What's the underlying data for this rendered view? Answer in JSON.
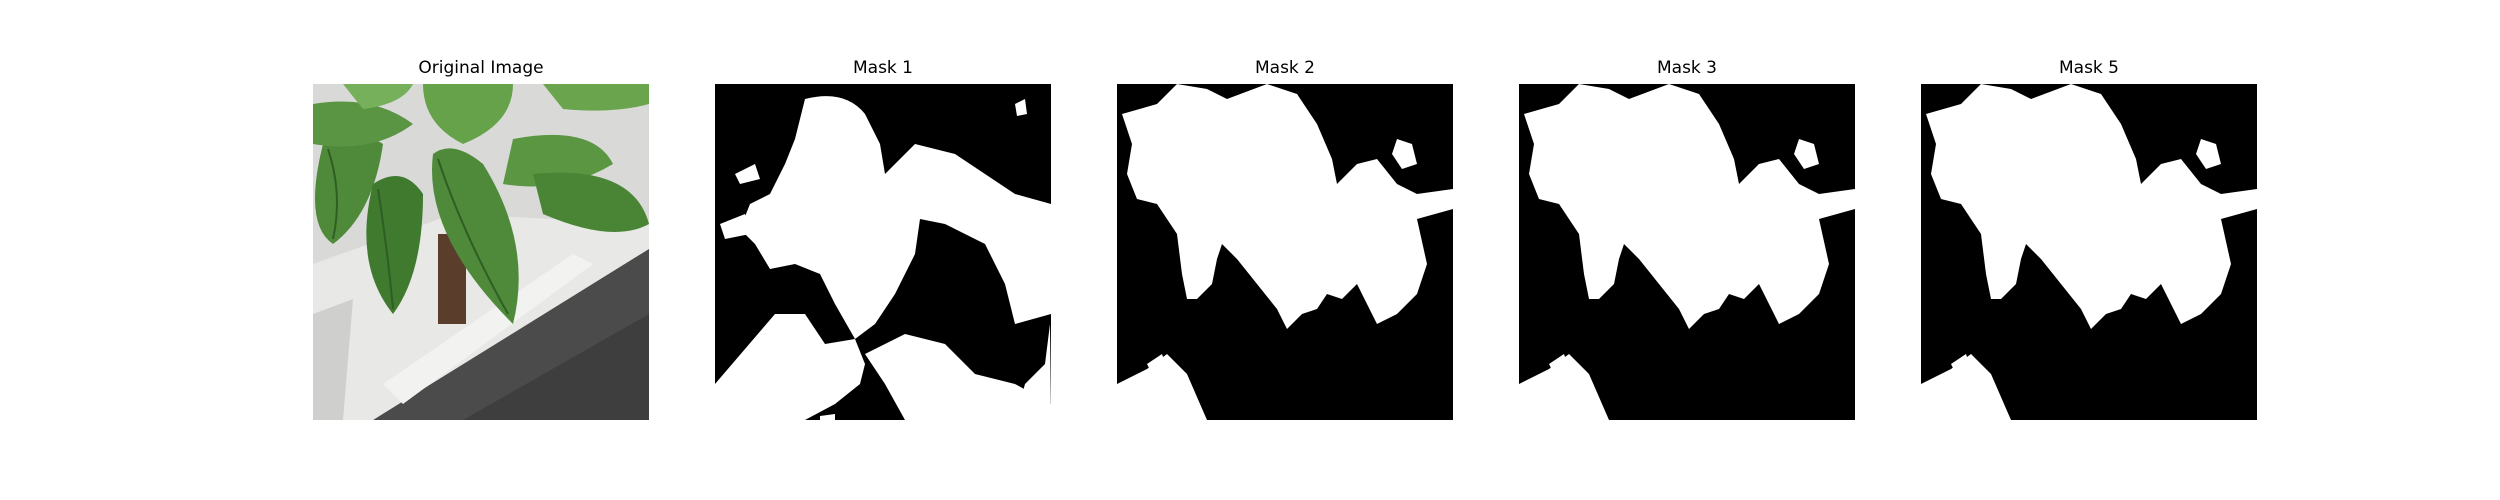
{
  "panels": [
    {
      "title": "Original Image",
      "icon": "plant-photo"
    },
    {
      "title": "Mask 1",
      "icon": "segmentation-mask"
    },
    {
      "title": "Mask 2",
      "icon": "segmentation-mask"
    },
    {
      "title": "Mask 3",
      "icon": "segmentation-mask"
    },
    {
      "title": "Mask 5",
      "icon": "segmentation-mask"
    }
  ],
  "colors": {
    "mask_background": "#000000",
    "mask_foreground": "#ffffff",
    "leaf": "#4f8a3a",
    "leaf_dark": "#2f5e24",
    "pot": "#e8e8e6",
    "ground": "#4b4b4b"
  }
}
